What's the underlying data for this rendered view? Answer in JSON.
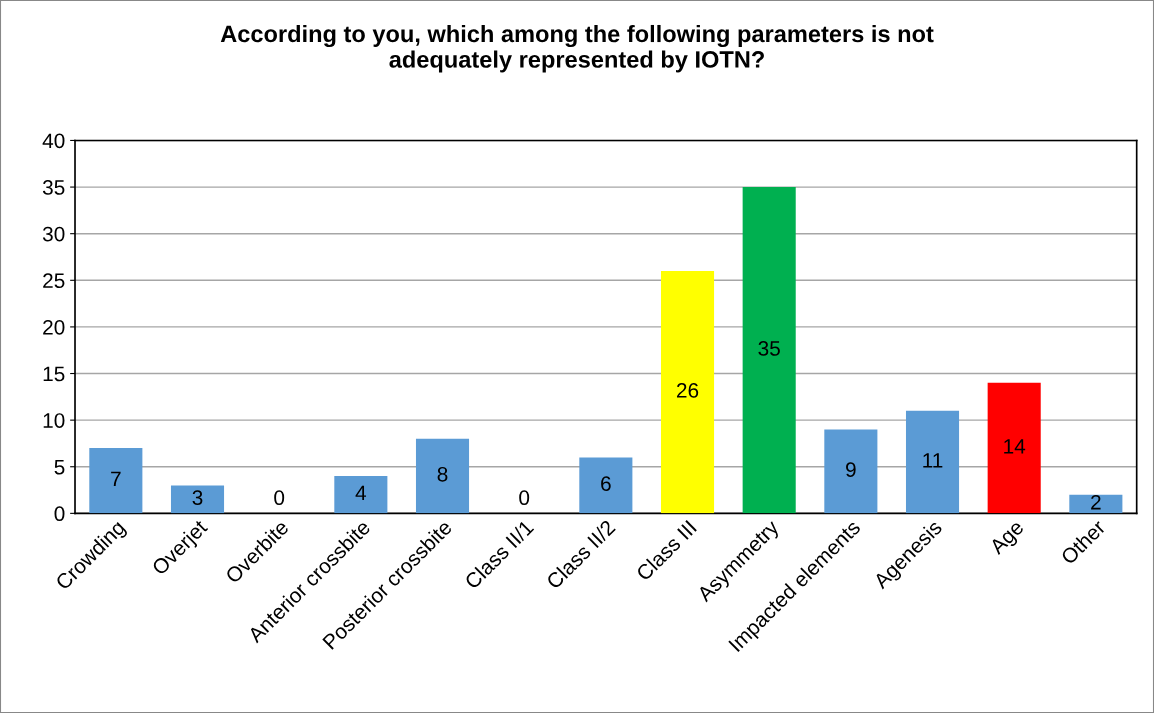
{
  "chart_data": {
    "type": "bar",
    "title": "According to you, which among the following parameters is not\nadequately represented by IOTN?",
    "categories": [
      "Crowding",
      "Overjet",
      "Overbite",
      "Anterior crossbite",
      "Posterior crossbite",
      "Class II/1",
      "Class II/2",
      "Class III",
      "Asymmetry",
      "Impacted elements",
      "Agenesis",
      "Age",
      "Other"
    ],
    "values": [
      7,
      3,
      0,
      4,
      8,
      0,
      6,
      26,
      35,
      9,
      11,
      14,
      2
    ],
    "colors": [
      "#5b9bd5",
      "#5b9bd5",
      "#5b9bd5",
      "#5b9bd5",
      "#5b9bd5",
      "#5b9bd5",
      "#5b9bd5",
      "#ffff00",
      "#00b050",
      "#5b9bd5",
      "#5b9bd5",
      "#ff0000",
      "#5b9bd5"
    ],
    "ylim": [
      0,
      40
    ],
    "yticks": [
      0,
      5,
      10,
      15,
      20,
      25,
      30,
      35,
      40
    ],
    "grid": "y",
    "data_labels": true,
    "legend": false
  }
}
